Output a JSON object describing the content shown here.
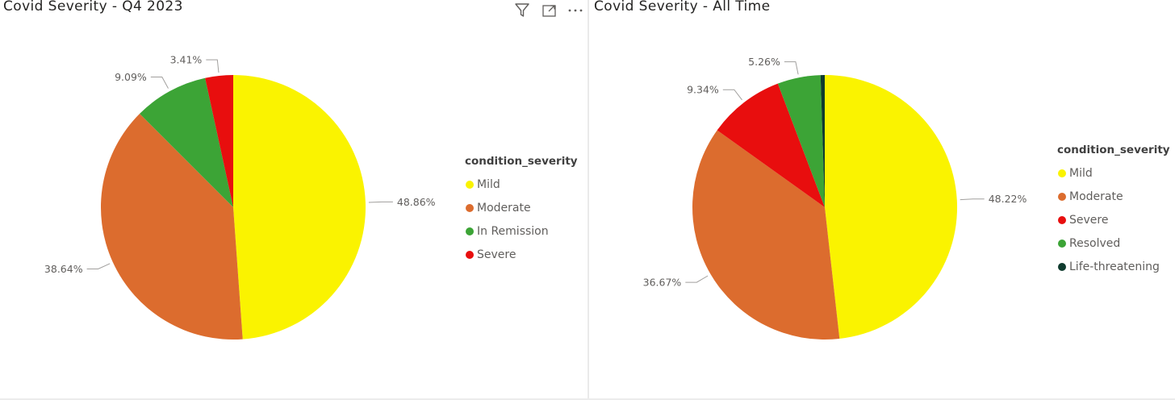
{
  "dashboard": {
    "left_title": "Covid Severity - Q4 2023",
    "right_title": "Covid Severity - All Time",
    "toolbar": {
      "filter_icon": "filter-icon",
      "focus_icon": "focus-mode-icon",
      "more_icon": "more-options-icon"
    }
  },
  "chart_data": [
    {
      "type": "pie",
      "title": "Covid Severity - Q4 2023",
      "legend_title": "condition_severity",
      "legend_position": "right",
      "categories": [
        "Mild",
        "Moderate",
        "In Remission",
        "Severe"
      ],
      "values": [
        48.86,
        38.64,
        9.09,
        3.41
      ],
      "labels": [
        "48.86%",
        "38.64%",
        "9.09%",
        "3.41%"
      ],
      "colors": [
        "#FAF300",
        "#DC6C2E",
        "#3CA436",
        "#E80E0E"
      ]
    },
    {
      "type": "pie",
      "title": "Covid Severity - All Time",
      "legend_title": "condition_severity",
      "legend_position": "right",
      "categories": [
        "Mild",
        "Moderate",
        "Severe",
        "Resolved",
        "Life-threatening"
      ],
      "values": [
        48.22,
        36.67,
        9.34,
        5.26,
        0.51
      ],
      "labels": [
        "48.22%",
        "36.67%",
        "9.34%",
        "5.26%",
        ""
      ],
      "colors": [
        "#FAF300",
        "#DC6C2E",
        "#E80E0E",
        "#3CA436",
        "#0F3B2E"
      ]
    }
  ]
}
